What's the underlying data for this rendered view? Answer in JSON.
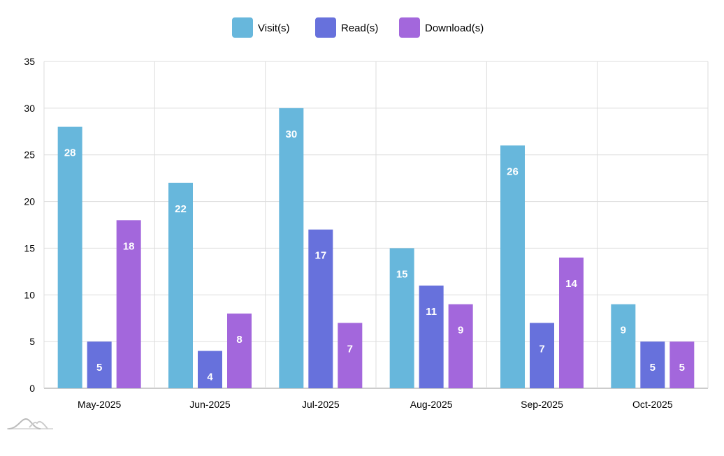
{
  "chart_data": {
    "type": "bar",
    "categories": [
      "May-2025",
      "Jun-2025",
      "Jul-2025",
      "Aug-2025",
      "Sep-2025",
      "Oct-2025"
    ],
    "series": [
      {
        "name": "Visit(s)",
        "color": "#67b7dc",
        "values": [
          28,
          22,
          30,
          15,
          26,
          9
        ]
      },
      {
        "name": "Read(s)",
        "color": "#6771dc",
        "values": [
          5,
          4,
          17,
          11,
          7,
          5
        ]
      },
      {
        "name": "Download(s)",
        "color": "#a367dc",
        "values": [
          18,
          8,
          7,
          9,
          14,
          5
        ]
      }
    ],
    "ylim": [
      0,
      35
    ],
    "yticks": [
      0,
      5,
      10,
      15,
      20,
      25,
      30,
      35
    ],
    "grid": true,
    "legend": "top-center",
    "title": "",
    "xlabel": "",
    "ylabel": ""
  }
}
